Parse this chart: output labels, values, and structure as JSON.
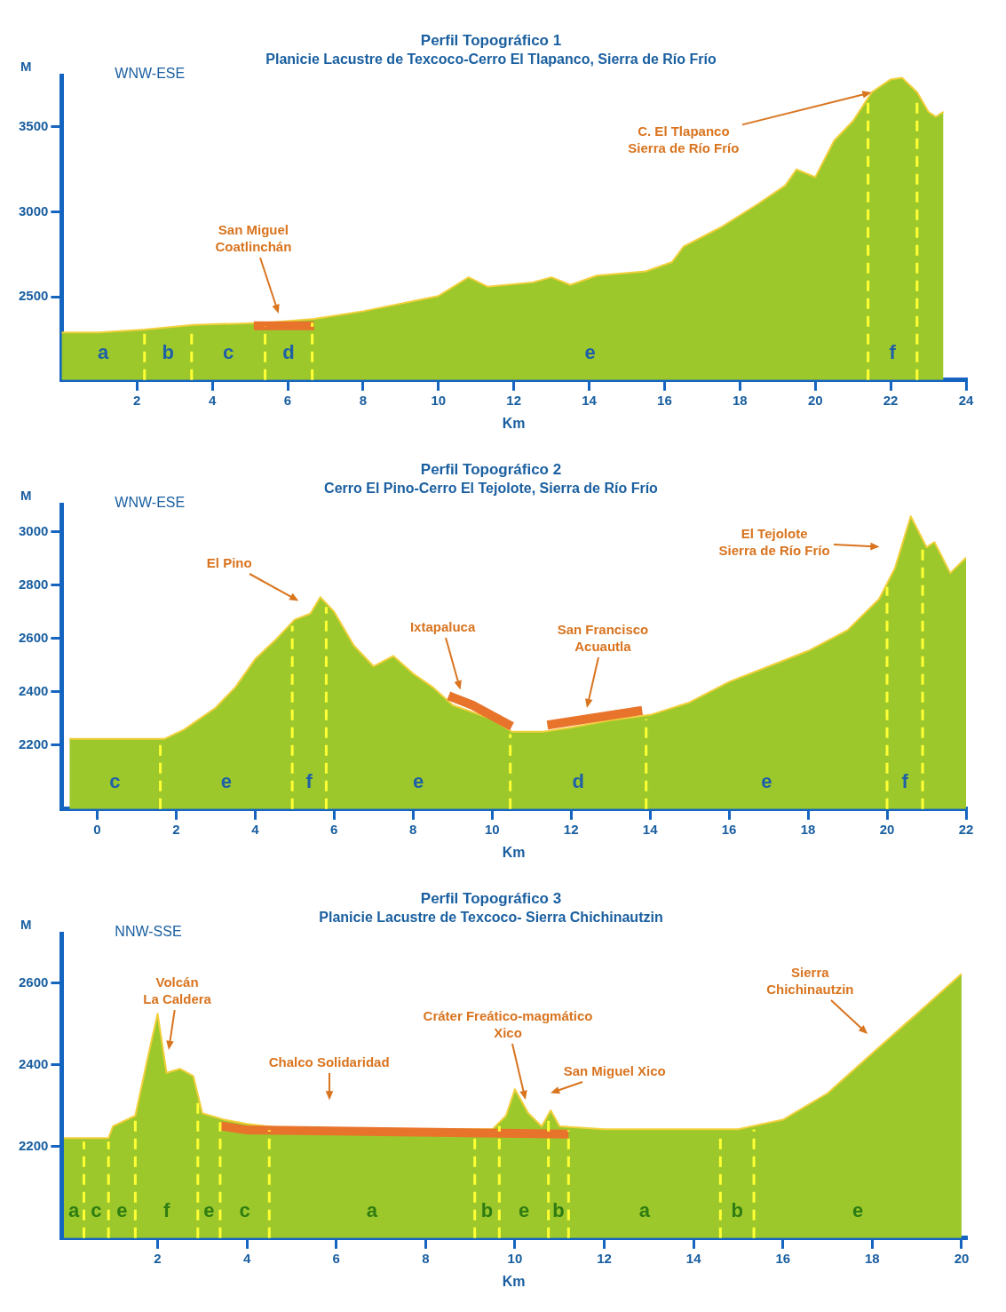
{
  "chart_data": [
    {
      "type": "area",
      "title": "Perfil Topográfico 1",
      "subtitle": "Planicie Lacustre de Texcoco-Cerro El Tlapanco, Sierra de Río Frío",
      "xlabel": "Km",
      "ylabel": "M",
      "xlim": [
        0,
        24
      ],
      "ylim": [
        2010,
        3800
      ],
      "xticks": [
        2,
        4,
        6,
        8,
        10,
        12,
        14,
        16,
        18,
        20,
        22,
        24
      ],
      "yticks": [
        2500,
        3000,
        3500
      ],
      "annotations": [
        "WNW-ESE",
        "San Miguel\nCoatlinchán",
        {
          "text": "C. El Tlapanco\nSierra de Río Frío",
          "x": 21.5,
          "y": 3705
        },
        "a",
        "b",
        "c",
        "d",
        "e",
        "f"
      ],
      "ref_lines": [
        {
          "axis": "x",
          "value": 2.2,
          "color": "#ffff33",
          "line_style": "dashed"
        },
        {
          "axis": "x",
          "value": 3.45,
          "color": "#ffff33",
          "line_style": "dashed"
        },
        {
          "axis": "x",
          "value": 5.4,
          "color": "#ffff33",
          "line_style": "dashed"
        },
        {
          "axis": "x",
          "value": 6.65,
          "color": "#ffff33",
          "line_style": "dashed"
        },
        {
          "axis": "x",
          "value": 21.4,
          "color": "#ffff33",
          "line_style": "dashed"
        },
        {
          "axis": "x",
          "value": 22.7,
          "color": "#ffff33",
          "line_style": "dashed"
        }
      ],
      "series": [
        {
          "type": "area",
          "color": "#9cc82c",
          "x": [
            0,
            1,
            2.2,
            3.5,
            5.4,
            6.7,
            8,
            10,
            10.8,
            11.3,
            12.5,
            13,
            13.5,
            14.2,
            15.5,
            16.2,
            16.5,
            17.5,
            18.5,
            19.2,
            19.5,
            20,
            20.5,
            21,
            21.5,
            22,
            22.3,
            22.7,
            23,
            23.2,
            23.4
          ],
          "values": [
            2290,
            2290,
            2307,
            2335,
            2347,
            2370,
            2415,
            2505,
            2615,
            2560,
            2585,
            2615,
            2570,
            2625,
            2650,
            2705,
            2795,
            2910,
            3050,
            3155,
            3250,
            3205,
            3420,
            3535,
            3705,
            3780,
            3790,
            3705,
            3590,
            3560,
            3590
          ]
        },
        {
          "type": "line",
          "color": "#e8742c",
          "x": [
            5.1,
            6.7
          ],
          "values": [
            2330,
            2330
          ]
        }
      ]
    },
    {
      "type": "area",
      "title": "Perfil Topográfico 2",
      "subtitle": "Cerro El Pino-Cerro El Tejolote, Sierra de Río Frío",
      "xlabel": "Km",
      "ylabel": "M",
      "xlim": [
        -0.9,
        22
      ],
      "ylim": [
        1960,
        3100
      ],
      "xticks": [
        0,
        2,
        4,
        6,
        8,
        10,
        12,
        14,
        16,
        18,
        20,
        22
      ],
      "yticks": [
        2200,
        2400,
        2600,
        2800,
        3000
      ],
      "annotations": [
        "WNW-ESE",
        "El Pino",
        "Ixtapaluca",
        "San Francisco\nAcuautla",
        "El Tejolote\nSierra de Río Frío",
        "c",
        "e",
        "f",
        "e",
        "d",
        "e",
        "f"
      ],
      "ref_lines": [
        {
          "axis": "x",
          "value": 1.6,
          "color": "#ffff33",
          "line_style": "dashed"
        },
        {
          "axis": "x",
          "value": 4.94,
          "color": "#ffff33",
          "line_style": "dashed"
        },
        {
          "axis": "x",
          "value": 5.8,
          "color": "#ffff33",
          "line_style": "dashed"
        },
        {
          "axis": "x",
          "value": 10.46,
          "color": "#ffff33",
          "line_style": "dashed"
        },
        {
          "axis": "x",
          "value": 13.9,
          "color": "#ffff33",
          "line_style": "dashed"
        },
        {
          "axis": "x",
          "value": 20,
          "color": "#ffff33",
          "line_style": "dashed"
        },
        {
          "axis": "x",
          "value": 20.9,
          "color": "#ffff33",
          "line_style": "dashed"
        }
      ],
      "series": [
        {
          "type": "area",
          "color": "#9cc82c",
          "x": [
            -0.7,
            1.7,
            2.2,
            3,
            3.5,
            4,
            4.5,
            5,
            5.4,
            5.65,
            6,
            6.5,
            7,
            7.5,
            8,
            8.5,
            9,
            10,
            10.5,
            11.3,
            12,
            13,
            14,
            15,
            16,
            17,
            18,
            19,
            19.8,
            20.2,
            20.6,
            21,
            21.2,
            21.6,
            22
          ],
          "values": [
            2223,
            2223,
            2258,
            2340,
            2417,
            2522,
            2592,
            2670,
            2693,
            2755,
            2700,
            2573,
            2495,
            2534,
            2468,
            2417,
            2350,
            2297,
            2250,
            2250,
            2266,
            2293,
            2313,
            2360,
            2437,
            2495,
            2553,
            2631,
            2748,
            2864,
            3058,
            2942,
            2961,
            2845,
            2903
          ]
        },
        {
          "type": "line",
          "color": "#e8742c",
          "x": [
            8.9,
            9.5,
            10.5
          ],
          "values": [
            2385,
            2350,
            2270
          ]
        },
        {
          "type": "line",
          "color": "#e8742c",
          "x": [
            11.4,
            13.8
          ],
          "values": [
            2275,
            2330
          ]
        }
      ]
    },
    {
      "type": "area",
      "title": "Perfil Topográfico 3",
      "subtitle": "Planicie Lacustre de Texcoco- Sierra Chichinautzin",
      "xlabel": "Km",
      "ylabel": "M",
      "xlim": [
        -0.15,
        20.1
      ],
      "ylim": [
        1975,
        2720
      ],
      "xticks": [
        2,
        4,
        6,
        8,
        10,
        12,
        14,
        16,
        18,
        20
      ],
      "yticks": [
        2200,
        2400,
        2600
      ],
      "annotations": [
        "NNW-SSE",
        "Volcán\nLa Caldera",
        "Chalco Solidaridad",
        "Cráter Freático-magmático\nXico",
        "San Miguel Xico",
        "Sierra\nChichinautzin",
        "a",
        "c",
        "e",
        "f",
        "e",
        "c",
        "a",
        "b",
        "e",
        "b",
        "a",
        "b",
        "e"
      ],
      "ref_lines": [
        {
          "axis": "x",
          "value": 0.35,
          "color": "#ffff33",
          "line_style": "dashed"
        },
        {
          "axis": "x",
          "value": 0.9,
          "color": "#ffff33",
          "line_style": "dashed"
        },
        {
          "axis": "x",
          "value": 1.5,
          "color": "#ffff33",
          "line_style": "dashed"
        },
        {
          "axis": "x",
          "value": 2.9,
          "color": "#ffff33",
          "line_style": "dashed"
        },
        {
          "axis": "x",
          "value": 3.4,
          "color": "#ffff33",
          "line_style": "dashed"
        },
        {
          "axis": "x",
          "value": 4.5,
          "color": "#ffff33",
          "line_style": "dashed"
        },
        {
          "axis": "x",
          "value": 9.1,
          "color": "#ffff33",
          "line_style": "dashed"
        },
        {
          "axis": "x",
          "value": 9.65,
          "color": "#ffff33",
          "line_style": "dashed"
        },
        {
          "axis": "x",
          "value": 10.75,
          "color": "#ffff33",
          "line_style": "dashed"
        },
        {
          "axis": "x",
          "value": 11.2,
          "color": "#ffff33",
          "line_style": "dashed"
        },
        {
          "axis": "x",
          "value": 14.6,
          "color": "#ffff33",
          "line_style": "dashed"
        },
        {
          "axis": "x",
          "value": 15.35,
          "color": "#ffff33",
          "line_style": "dashed"
        }
      ],
      "series": [
        {
          "type": "area",
          "color": "#9cc82c",
          "x": [
            -0.1,
            0.9,
            1,
            1.5,
            1.8,
            2,
            2.2,
            2.5,
            2.8,
            3,
            3.5,
            4,
            5,
            9.5,
            9.8,
            10,
            10.3,
            10.6,
            10.8,
            11,
            12,
            15,
            16,
            17,
            18,
            19,
            20
          ],
          "values": [
            2220,
            2220,
            2249,
            2275,
            2428,
            2525,
            2380,
            2390,
            2372,
            2281,
            2265,
            2255,
            2242,
            2242,
            2275,
            2340,
            2281,
            2249,
            2288,
            2249,
            2242,
            2242,
            2265,
            2330,
            2428,
            2525,
            2623
          ]
        },
        {
          "type": "line",
          "color": "#e8742c",
          "x": [
            3.4,
            4,
            11.2
          ],
          "values": [
            2250,
            2240,
            2230
          ]
        }
      ]
    }
  ]
}
